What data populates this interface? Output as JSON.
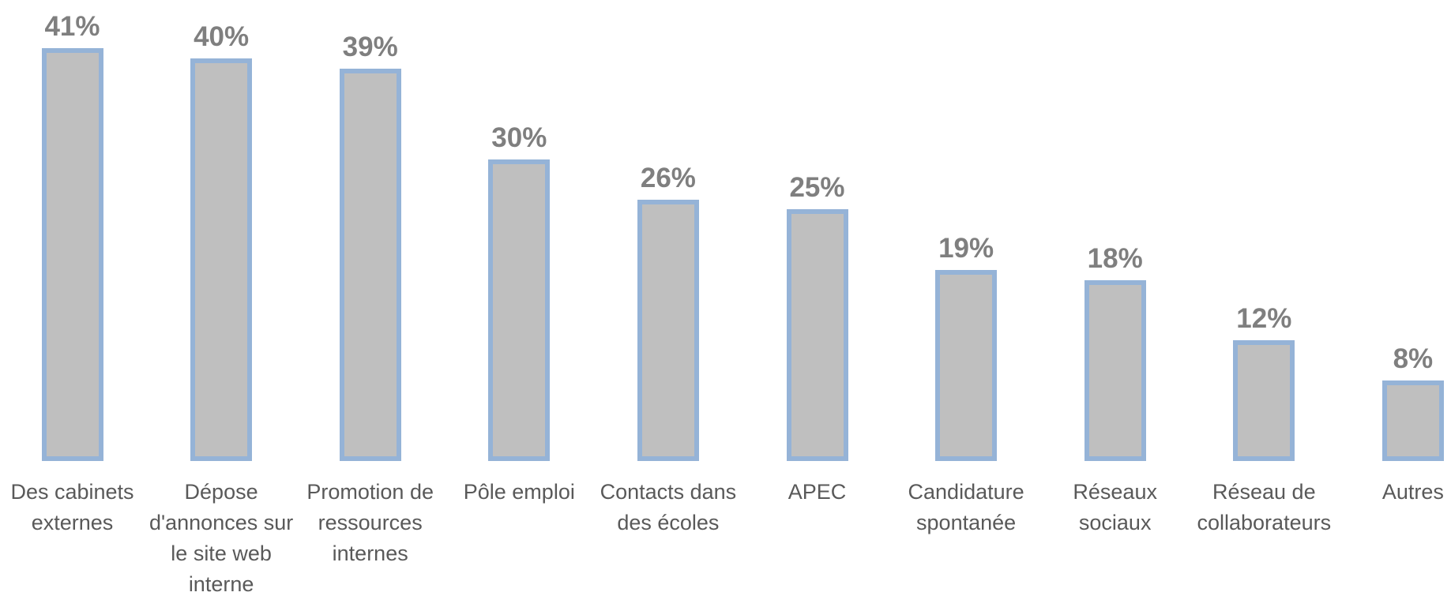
{
  "chart_data": {
    "type": "bar",
    "categories": [
      "Des cabinets externes",
      "Dépose d'annonces sur le site web interne",
      "Promotion de ressources internes",
      "Pôle emploi",
      "Contacts dans des écoles",
      "APEC",
      "Candidature spontanée",
      "Réseaux sociaux",
      "Réseau de collaborateurs",
      "Autres"
    ],
    "values": [
      41,
      40,
      39,
      30,
      26,
      25,
      19,
      18,
      12,
      8
    ],
    "value_labels": [
      "41%",
      "40%",
      "39%",
      "30%",
      "26%",
      "25%",
      "19%",
      "18%",
      "12%",
      "8%"
    ],
    "color": "#bfbfbf",
    "edge_color": "#95b3d7"
  }
}
